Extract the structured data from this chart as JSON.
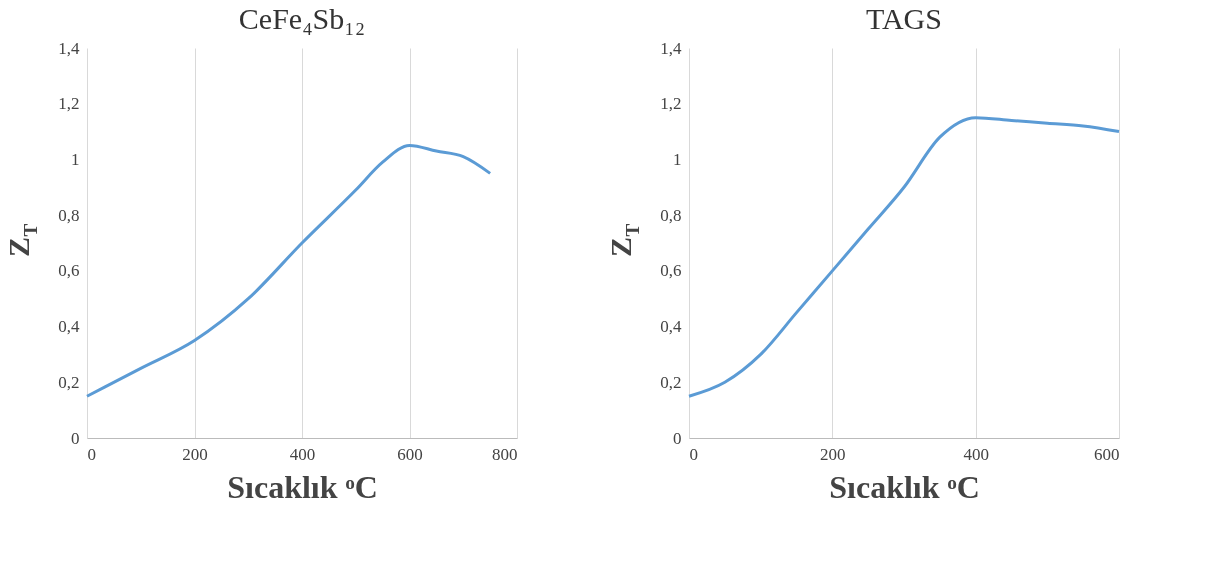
{
  "chart_data": [
    {
      "type": "line",
      "title": "CeFe₄Sb₁₂",
      "xlabel": "Sıcaklık ᵒC",
      "ylabel": "Z$_{T}$",
      "x": [
        0,
        100,
        200,
        300,
        400,
        500,
        550,
        600,
        650,
        700,
        750
      ],
      "series": [
        {
          "color": "#5b9bd5",
          "values": [
            0.15,
            0.25,
            0.35,
            0.5,
            0.7,
            0.89,
            0.99,
            1.05,
            1.03,
            1.01,
            0.95
          ]
        }
      ],
      "xlim": [
        0,
        800
      ],
      "xticks": [
        0,
        200,
        400,
        600,
        800
      ],
      "ylim": [
        0,
        1.4
      ],
      "yticks": [
        0,
        {
          "value": 0.2,
          "label": "0,2"
        },
        {
          "value": 0.4,
          "label": "0,4"
        },
        {
          "value": 0.6,
          "label": "0,6"
        },
        {
          "value": 0.8,
          "label": "0,8"
        },
        1,
        {
          "value": 1.2,
          "label": "1,2"
        },
        {
          "value": 1.4,
          "label": "1,4"
        }
      ],
      "grid": "x",
      "legend": false,
      "marker": "none",
      "line_style": "solid"
    },
    {
      "type": "line",
      "title": "TAGS",
      "xlabel": "Sıcaklık ᵒC",
      "ylabel": "Z$_{T}$",
      "x": [
        0,
        50,
        100,
        150,
        200,
        250,
        300,
        350,
        400,
        450,
        500,
        550,
        600
      ],
      "series": [
        {
          "color": "#5b9bd5",
          "values": [
            0.15,
            0.2,
            0.3,
            0.45,
            0.6,
            0.75,
            0.9,
            1.08,
            1.15,
            1.14,
            1.13,
            1.12,
            1.1
          ]
        }
      ],
      "xlim": [
        0,
        600
      ],
      "xticks": [
        0,
        200,
        400,
        600
      ],
      "ylim": [
        0,
        1.4
      ],
      "yticks": [
        0,
        {
          "value": 0.2,
          "label": "0,2"
        },
        {
          "value": 0.4,
          "label": "0,4"
        },
        {
          "value": 0.6,
          "label": "0,6"
        },
        {
          "value": 0.8,
          "label": "0,8"
        },
        1,
        {
          "value": 1.2,
          "label": "1,2"
        },
        {
          "value": 1.4,
          "label": "1,4"
        }
      ],
      "grid": "x",
      "legend": false,
      "marker": "none",
      "line_style": "solid"
    }
  ]
}
